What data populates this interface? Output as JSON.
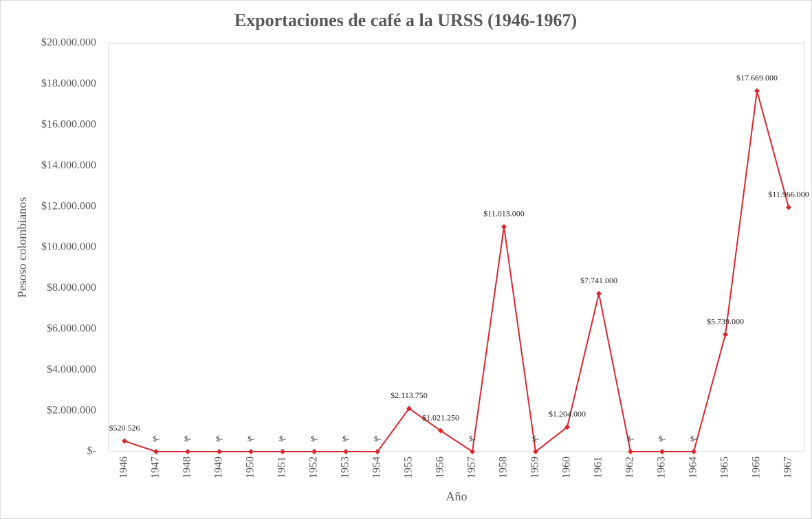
{
  "chart_data": {
    "type": "line",
    "title": "Exportaciones de café a la URSS (1946-1967)",
    "y_label": "Pesoso colombianos",
    "x_label": "Año",
    "categories": [
      "1946",
      "1947",
      "1948",
      "1949",
      "1950",
      "1951",
      "1952",
      "1953",
      "1954",
      "1955",
      "1956",
      "1957",
      "1958",
      "1959",
      "1960",
      "1961",
      "1962",
      "1963",
      "1964",
      "1965",
      "1966",
      "1967"
    ],
    "series": [
      {
        "name": "Exportaciones",
        "color": "#d9262f",
        "values": [
          520526,
          0,
          0,
          0,
          0,
          0,
          0,
          0,
          0,
          2113750,
          1021250,
          0,
          11013000,
          0,
          1204000,
          7741000,
          0,
          0,
          0,
          5739000,
          17669000,
          11966000
        ],
        "value_labels": [
          "$520.526",
          "$-",
          "$-",
          "$-",
          "$-",
          "$-",
          "$-",
          "$-",
          "$-",
          "$2.113.750",
          "$1.021.250",
          "$-",
          "$11.013.000",
          "$-",
          "$1.204.000",
          "$7.741.000",
          "$-",
          "$-",
          "$-",
          "$5.739.000",
          "$17.669.000",
          "$11.966.000"
        ]
      }
    ],
    "ylim": [
      0,
      20000000
    ],
    "yticks": [
      {
        "value": 0,
        "label": "$-"
      },
      {
        "value": 2000000,
        "label": "$2.000.000"
      },
      {
        "value": 4000000,
        "label": "$4.000.000"
      },
      {
        "value": 6000000,
        "label": "$6.000.000"
      },
      {
        "value": 8000000,
        "label": "$8.000.000"
      },
      {
        "value": 10000000,
        "label": "$10.000.000"
      },
      {
        "value": 12000000,
        "label": "$12.000.000"
      },
      {
        "value": 14000000,
        "label": "$14.000.000"
      },
      {
        "value": 16000000,
        "label": "$16.000.000"
      },
      {
        "value": 18000000,
        "label": "$18.000.000"
      },
      {
        "value": 20000000,
        "label": "$20.000.000"
      }
    ],
    "grid": false
  }
}
